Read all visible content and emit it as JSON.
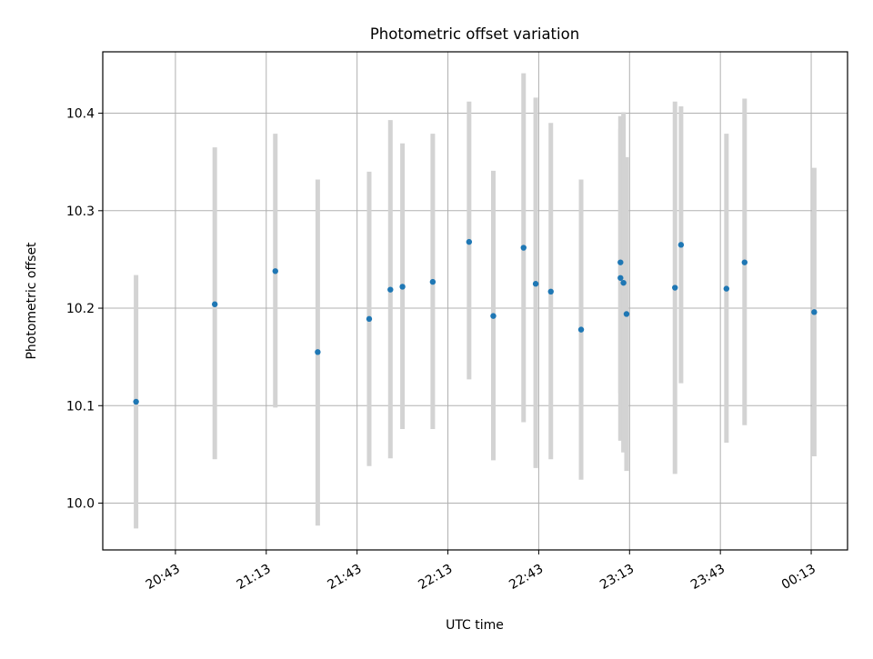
{
  "chart_data": {
    "type": "scatter",
    "title": "Photometric offset variation",
    "xlabel": "UTC time",
    "ylabel": "Photometric offset",
    "xlim": [
      "20:19",
      "00:25"
    ],
    "ylim": [
      9.952,
      10.463
    ],
    "grid": true,
    "x_ticks": [
      "20:43",
      "21:13",
      "21:43",
      "22:13",
      "22:43",
      "23:13",
      "23:43",
      "00:13"
    ],
    "y_ticks": [
      10.0,
      10.1,
      10.2,
      10.3,
      10.4
    ],
    "y_tick_labels": [
      "10.0",
      "10.1",
      "10.2",
      "10.3",
      "10.4"
    ],
    "point_color": "#1f77b4",
    "errorbar_color": "#d3d3d3",
    "series": [
      {
        "points": [
          {
            "time": "20:30",
            "value": 10.104,
            "low": 9.974,
            "high": 10.234
          },
          {
            "time": "20:56",
            "value": 10.204,
            "low": 10.045,
            "high": 10.365
          },
          {
            "time": "21:16",
            "value": 10.238,
            "low": 10.098,
            "high": 10.379
          },
          {
            "time": "21:30",
            "value": 10.155,
            "low": 9.977,
            "high": 10.332
          },
          {
            "time": "21:47",
            "value": 10.189,
            "low": 10.038,
            "high": 10.34
          },
          {
            "time": "21:54",
            "value": 10.219,
            "low": 10.046,
            "high": 10.393
          },
          {
            "time": "21:58",
            "value": 10.222,
            "low": 10.076,
            "high": 10.369
          },
          {
            "time": "22:08",
            "value": 10.227,
            "low": 10.076,
            "high": 10.379
          },
          {
            "time": "22:20",
            "value": 10.268,
            "low": 10.127,
            "high": 10.412
          },
          {
            "time": "22:28",
            "value": 10.192,
            "low": 10.044,
            "high": 10.341
          },
          {
            "time": "22:38",
            "value": 10.262,
            "low": 10.083,
            "high": 10.441
          },
          {
            "time": "22:42",
            "value": 10.225,
            "low": 10.036,
            "high": 10.416
          },
          {
            "time": "22:47",
            "value": 10.217,
            "low": 10.045,
            "high": 10.39
          },
          {
            "time": "22:57",
            "value": 10.178,
            "low": 10.024,
            "high": 10.332
          },
          {
            "time": "23:10",
            "value": 10.247,
            "low": 10.113,
            "high": 10.384
          },
          {
            "time": "23:10",
            "value": 10.231,
            "low": 10.064,
            "high": 10.397
          },
          {
            "time": "23:11",
            "value": 10.226,
            "low": 10.052,
            "high": 10.401
          },
          {
            "time": "23:12",
            "value": 10.194,
            "low": 10.033,
            "high": 10.355
          },
          {
            "time": "23:28",
            "value": 10.221,
            "low": 10.03,
            "high": 10.412
          },
          {
            "time": "23:30",
            "value": 10.265,
            "low": 10.123,
            "high": 10.407
          },
          {
            "time": "23:45",
            "value": 10.22,
            "low": 10.062,
            "high": 10.379
          },
          {
            "time": "23:51",
            "value": 10.247,
            "low": 10.08,
            "high": 10.415
          },
          {
            "time": "00:14",
            "value": 10.196,
            "low": 10.048,
            "high": 10.344
          }
        ]
      }
    ]
  }
}
